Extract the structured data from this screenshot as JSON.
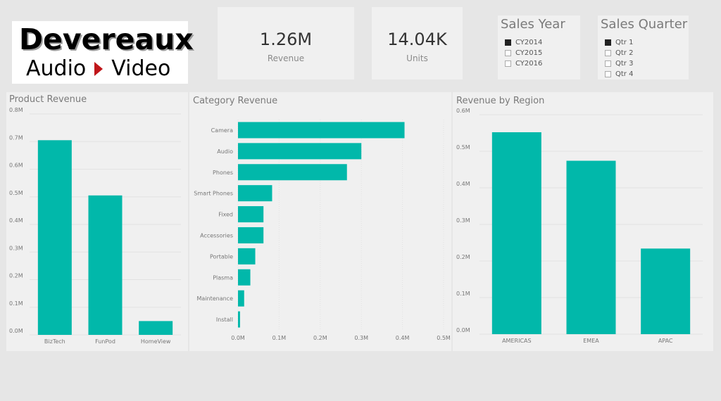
{
  "logo": {
    "line1": "Devereaux",
    "line2_left": "Audio",
    "line2_right": "Video",
    "arrow_color": "#c0161a"
  },
  "kpis": [
    {
      "value": "1.26M",
      "label": "Revenue"
    },
    {
      "value": "14.04K",
      "label": "Units"
    }
  ],
  "slicers": {
    "sales_year": {
      "title": "Sales Year",
      "items": [
        {
          "label": "CY2014",
          "checked": true
        },
        {
          "label": "CY2015",
          "checked": false
        },
        {
          "label": "CY2016",
          "checked": false
        }
      ]
    },
    "sales_quarter": {
      "title": "Sales Quarter",
      "items": [
        {
          "label": "Qtr 1",
          "checked": true
        },
        {
          "label": "Qtr 2",
          "checked": false
        },
        {
          "label": "Qtr 3",
          "checked": false
        },
        {
          "label": "Qtr 4",
          "checked": false
        }
      ]
    }
  },
  "colors": {
    "bar": "#01b8aa",
    "grid": "#e2e2e2",
    "axis_text": "#777777"
  },
  "chart_data": [
    {
      "id": "product",
      "type": "bar",
      "title": "Product Revenue",
      "categories": [
        "BizTech",
        "FunPod",
        "HomeView"
      ],
      "values": [
        0.705,
        0.505,
        0.05
      ],
      "ylim": [
        0,
        0.8
      ],
      "ticks": [
        0,
        0.1,
        0.2,
        0.3,
        0.4,
        0.5,
        0.6,
        0.7,
        0.8
      ],
      "tick_labels": [
        "0.0M",
        "0.1M",
        "0.2M",
        "0.3M",
        "0.4M",
        "0.5M",
        "0.6M",
        "0.7M",
        "0.8M"
      ],
      "xlabel": "",
      "ylabel": "",
      "grid": true
    },
    {
      "id": "category",
      "type": "bar",
      "orientation": "horizontal",
      "title": "Category Revenue",
      "categories": [
        "Camera",
        "Audio",
        "Phones",
        "Smart Phones",
        "Fixed",
        "Accessories",
        "Portable",
        "Plasma",
        "Maintenance",
        "Install"
      ],
      "values": [
        0.405,
        0.3,
        0.265,
        0.083,
        0.062,
        0.062,
        0.042,
        0.03,
        0.015,
        0.005
      ],
      "xlim": [
        0,
        0.5
      ],
      "ticks": [
        0,
        0.1,
        0.2,
        0.3,
        0.4,
        0.5
      ],
      "tick_labels": [
        "0.0M",
        "0.1M",
        "0.2M",
        "0.3M",
        "0.4M",
        "0.5M"
      ],
      "xlabel": "",
      "ylabel": "",
      "grid": true
    },
    {
      "id": "region",
      "type": "bar",
      "title": "Revenue by Region",
      "categories": [
        "AMERICAS",
        "EMEA",
        "APAC"
      ],
      "values": [
        0.552,
        0.474,
        0.234
      ],
      "ylim": [
        0,
        0.6
      ],
      "ticks": [
        0,
        0.1,
        0.2,
        0.3,
        0.4,
        0.5,
        0.6
      ],
      "tick_labels": [
        "0.0M",
        "0.1M",
        "0.2M",
        "0.3M",
        "0.4M",
        "0.5M",
        "0.6M"
      ],
      "xlabel": "",
      "ylabel": "",
      "grid": true
    }
  ]
}
